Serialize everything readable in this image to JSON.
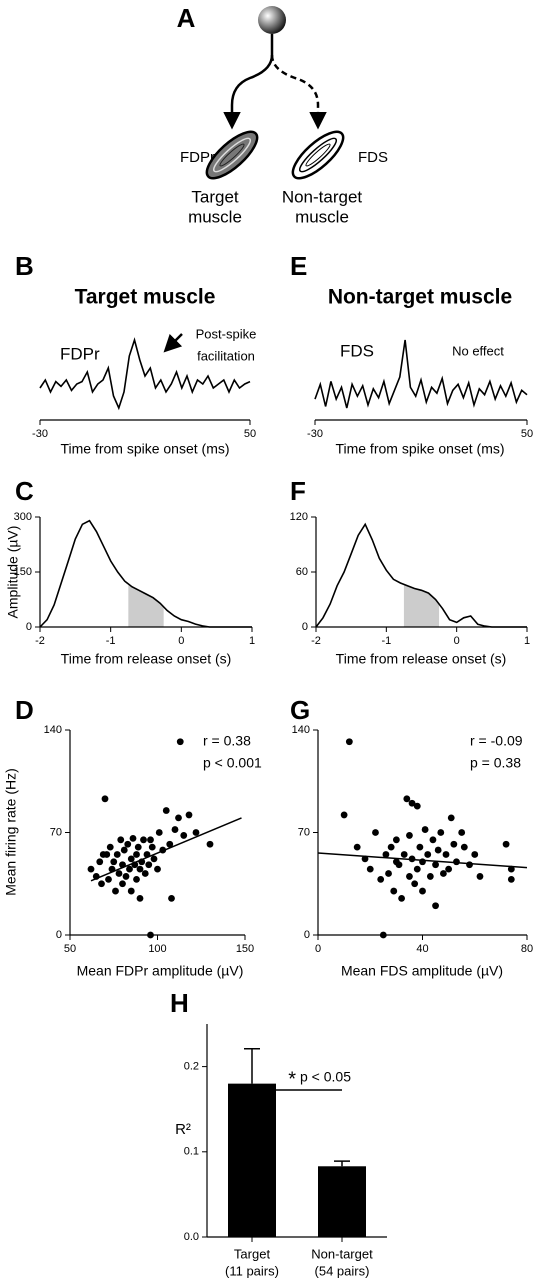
{
  "diagram": {
    "panel_label": "A",
    "left_muscle": "FDPr",
    "right_muscle": "FDS",
    "left_caption": [
      "Target",
      "muscle"
    ],
    "right_caption": [
      "Non-target",
      "muscle"
    ]
  },
  "chart_data": [
    {
      "type": "line",
      "panel_label": "B",
      "title": "Target muscle",
      "muscle": "FDPr",
      "annotation": [
        "Post-spike",
        "facilitation"
      ],
      "xlabel": "Time from spike onset (ms)",
      "color": "#000000",
      "x": [
        -30,
        -28,
        -26,
        -24,
        -22,
        -20,
        -18,
        -16,
        -14,
        -12,
        -10,
        -8,
        -6,
        -4,
        -2,
        0,
        2,
        4,
        6,
        8,
        10,
        12,
        14,
        16,
        18,
        20,
        22,
        24,
        26,
        28,
        30,
        32,
        34,
        36,
        38,
        40,
        42,
        44,
        46,
        48,
        50
      ],
      "values": [
        0,
        1,
        -0.5,
        0.8,
        0.2,
        1,
        -0.3,
        0.5,
        0.8,
        2,
        -0.5,
        0.5,
        1,
        2.5,
        -1,
        -2.5,
        -0.5,
        4,
        6,
        3.5,
        1.5,
        2.5,
        0,
        1,
        -0.5,
        0.5,
        2,
        0,
        1.5,
        -0.5,
        1,
        0.5,
        1.5,
        0,
        0.5,
        1,
        -0.5,
        1,
        0,
        0.5,
        0.8
      ],
      "xlim": [
        -30,
        50
      ],
      "xticks": [
        -30,
        50
      ]
    },
    {
      "type": "line",
      "panel_label": "E",
      "title": "Non-target muscle",
      "muscle": "FDS",
      "annotation": [
        "No effect"
      ],
      "xlabel": "Time from spike onset (ms)",
      "color": "#000000",
      "x": [
        -30,
        -28,
        -26,
        -24,
        -22,
        -20,
        -18,
        -16,
        -14,
        -12,
        -10,
        -8,
        -6,
        -4,
        -2,
        0,
        2,
        4,
        6,
        8,
        10,
        12,
        14,
        16,
        18,
        20,
        22,
        24,
        26,
        28,
        30,
        32,
        34,
        36,
        38,
        40,
        42,
        44,
        46,
        48,
        50
      ],
      "values": [
        0,
        1,
        -0.5,
        1.2,
        0,
        0.8,
        -0.6,
        1,
        0.2,
        0.9,
        -0.4,
        0.7,
        0.1,
        1.2,
        -0.3,
        0.6,
        1.5,
        4,
        0.8,
        0.2,
        1.3,
        -0.2,
        0.8,
        0.4,
        1.4,
        -0.3,
        0.6,
        1,
        0.1,
        1.1,
        -0.4,
        0.7,
        0.3,
        1.2,
        0,
        0.9,
        0.2,
        1.1,
        -0.2,
        0.6,
        0.3
      ],
      "xlim": [
        -30,
        50
      ],
      "xticks": [
        -30,
        50
      ]
    },
    {
      "type": "line",
      "panel_label": "C",
      "xlabel": "Time from release onset (s)",
      "ylabel": "Amplitude (µV)",
      "color": "#000000",
      "shade_color": "#cccccc",
      "shaded_range": [
        -0.75,
        -0.25
      ],
      "x": [
        -2,
        -1.9,
        -1.8,
        -1.7,
        -1.6,
        -1.5,
        -1.4,
        -1.3,
        -1.2,
        -1.1,
        -1,
        -0.9,
        -0.8,
        -0.7,
        -0.6,
        -0.5,
        -0.4,
        -0.3,
        -0.2,
        -0.1,
        0,
        0.1,
        0.2,
        0.3,
        0.4,
        0.5,
        0.6,
        0.7,
        0.8,
        0.9,
        1
      ],
      "values": [
        0,
        20,
        60,
        120,
        180,
        240,
        280,
        290,
        260,
        220,
        180,
        150,
        125,
        110,
        100,
        90,
        80,
        65,
        45,
        30,
        20,
        15,
        8,
        3,
        0,
        0,
        0,
        0,
        0,
        0,
        0
      ],
      "xlim": [
        -2,
        1
      ],
      "xticks": [
        -2,
        -1,
        0,
        1
      ],
      "ylim": [
        0,
        300
      ],
      "yticks": [
        0,
        150,
        300
      ]
    },
    {
      "type": "line",
      "panel_label": "F",
      "xlabel": "Time from release onset (s)",
      "color": "#000000",
      "shade_color": "#cccccc",
      "shaded_range": [
        -0.75,
        -0.25
      ],
      "x": [
        -2,
        -1.9,
        -1.8,
        -1.7,
        -1.6,
        -1.5,
        -1.4,
        -1.3,
        -1.2,
        -1.1,
        -1,
        -0.9,
        -0.8,
        -0.7,
        -0.6,
        -0.5,
        -0.4,
        -0.3,
        -0.2,
        -0.1,
        0,
        0.1,
        0.2,
        0.3,
        0.4,
        0.5,
        0.6,
        0.7,
        0.8,
        0.9,
        1
      ],
      "values": [
        0,
        10,
        25,
        45,
        60,
        80,
        100,
        112,
        95,
        75,
        62,
        52,
        48,
        45,
        42,
        40,
        37,
        30,
        20,
        8,
        5,
        10,
        12,
        3,
        1,
        0,
        0,
        0,
        0,
        0,
        0
      ],
      "xlim": [
        -2,
        1
      ],
      "xticks": [
        -2,
        -1,
        0,
        1
      ],
      "ylim": [
        0,
        120
      ],
      "yticks": [
        0,
        60,
        120
      ]
    },
    {
      "type": "scatter",
      "panel_label": "D",
      "xlabel": "Mean FDPr amplitude (µV)",
      "ylabel": "Mean firing rate (Hz)",
      "annotation": [
        "r = 0.38",
        "p < 0.001"
      ],
      "color": "#000000",
      "x": [
        62,
        65,
        67,
        68,
        70,
        71,
        72,
        73,
        74,
        75,
        76,
        77,
        78,
        79,
        80,
        80,
        81,
        82,
        83,
        84,
        85,
        85,
        86,
        87,
        88,
        88,
        89,
        90,
        90,
        91,
        92,
        93,
        94,
        95,
        96,
        97,
        98,
        100,
        101,
        103,
        105,
        107,
        108,
        110,
        112,
        113,
        115,
        118,
        122,
        130,
        69,
        96
      ],
      "values": [
        45,
        40,
        50,
        35,
        93,
        55,
        38,
        60,
        45,
        50,
        30,
        55,
        42,
        65,
        48,
        35,
        58,
        40,
        62,
        45,
        52,
        30,
        66,
        48,
        55,
        38,
        60,
        45,
        25,
        50,
        65,
        42,
        55,
        48,
        0,
        60,
        52,
        45,
        70,
        58,
        85,
        62,
        25,
        72,
        80,
        132,
        68,
        82,
        70,
        62,
        55,
        65
      ],
      "fit": {
        "x": [
          62,
          148
        ],
        "values": [
          37,
          80
        ]
      },
      "xlim": [
        50,
        150
      ],
      "xticks": [
        50,
        100,
        150
      ],
      "ylim": [
        0,
        140
      ],
      "yticks": [
        0,
        70,
        140
      ]
    },
    {
      "type": "scatter",
      "panel_label": "G",
      "xlabel": "Mean FDS amplitude (µV)",
      "annotation": [
        "r = -0.09",
        "p = 0.38"
      ],
      "color": "#000000",
      "x": [
        10,
        12,
        15,
        18,
        20,
        22,
        24,
        25,
        26,
        27,
        28,
        29,
        30,
        30,
        31,
        32,
        33,
        34,
        35,
        35,
        36,
        37,
        38,
        38,
        39,
        40,
        40,
        41,
        42,
        43,
        44,
        45,
        45,
        46,
        47,
        48,
        49,
        50,
        51,
        52,
        53,
        55,
        56,
        58,
        60,
        62,
        72,
        74,
        74,
        36
      ],
      "values": [
        82,
        132,
        60,
        52,
        45,
        70,
        38,
        0,
        55,
        42,
        60,
        30,
        50,
        65,
        48,
        25,
        55,
        93,
        40,
        68,
        52,
        35,
        88,
        45,
        60,
        50,
        30,
        72,
        55,
        40,
        65,
        48,
        20,
        58,
        70,
        42,
        55,
        45,
        80,
        62,
        50,
        70,
        60,
        48,
        55,
        40,
        62,
        45,
        38,
        90
      ],
      "fit": {
        "x": [
          0,
          80
        ],
        "values": [
          56,
          46
        ]
      },
      "xlim": [
        0,
        80
      ],
      "xticks": [
        0,
        40,
        80
      ],
      "ylim": [
        0,
        140
      ],
      "yticks": [
        0,
        70,
        140
      ]
    },
    {
      "type": "bar",
      "panel_label": "H",
      "ylabel": "R²",
      "annotation_star": "*",
      "annotation": "p < 0.05",
      "color": "#000000",
      "categories": [
        "Target",
        "Non-target"
      ],
      "category_sublabels": [
        "(11 pairs)",
        "(54 pairs)"
      ],
      "values": [
        0.18,
        0.083
      ],
      "errors": [
        0.041,
        0.006
      ],
      "ylim": [
        0,
        0.25
      ],
      "yticks": [
        {
          "value": 0,
          "label": "0.0"
        },
        0.1,
        0.2
      ]
    }
  ]
}
